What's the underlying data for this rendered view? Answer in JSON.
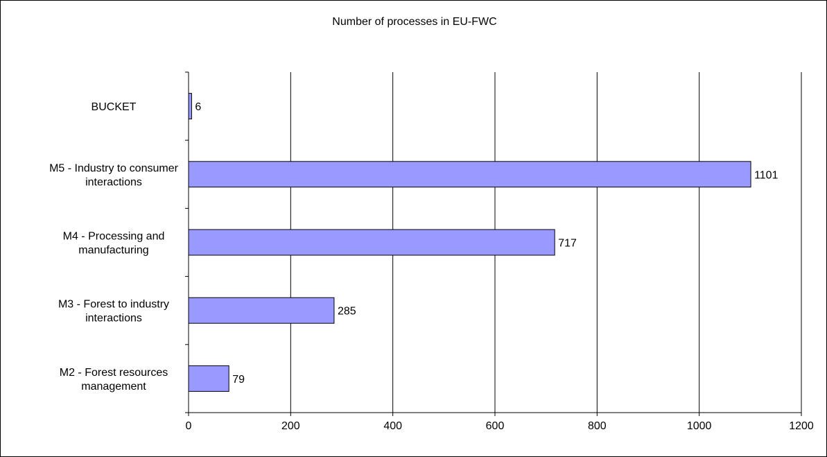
{
  "chart_data": {
    "type": "bar",
    "orientation": "horizontal",
    "title": "Number of processes in EU-FWC",
    "xlabel": "",
    "ylabel": "",
    "categories": [
      [
        "BUCKET"
      ],
      [
        "M5 - Industry to consumer",
        "interactions"
      ],
      [
        "M4 - Processing and",
        "manufacturing"
      ],
      [
        "M3 - Forest to industry",
        "interactions"
      ],
      [
        "M2 - Forest resources",
        "management"
      ]
    ],
    "values": [
      6,
      1101,
      717,
      285,
      79
    ],
    "value_labels": [
      "6",
      "1101",
      "717",
      "285",
      "79"
    ],
    "xlim": [
      0,
      1200
    ],
    "x_ticks": [
      "0",
      "200",
      "400",
      "600",
      "800",
      "1000",
      "1200"
    ],
    "grid": "vertical",
    "legend": "none",
    "bar_color": "#9999ff",
    "bar_edge_color": "#000000"
  }
}
